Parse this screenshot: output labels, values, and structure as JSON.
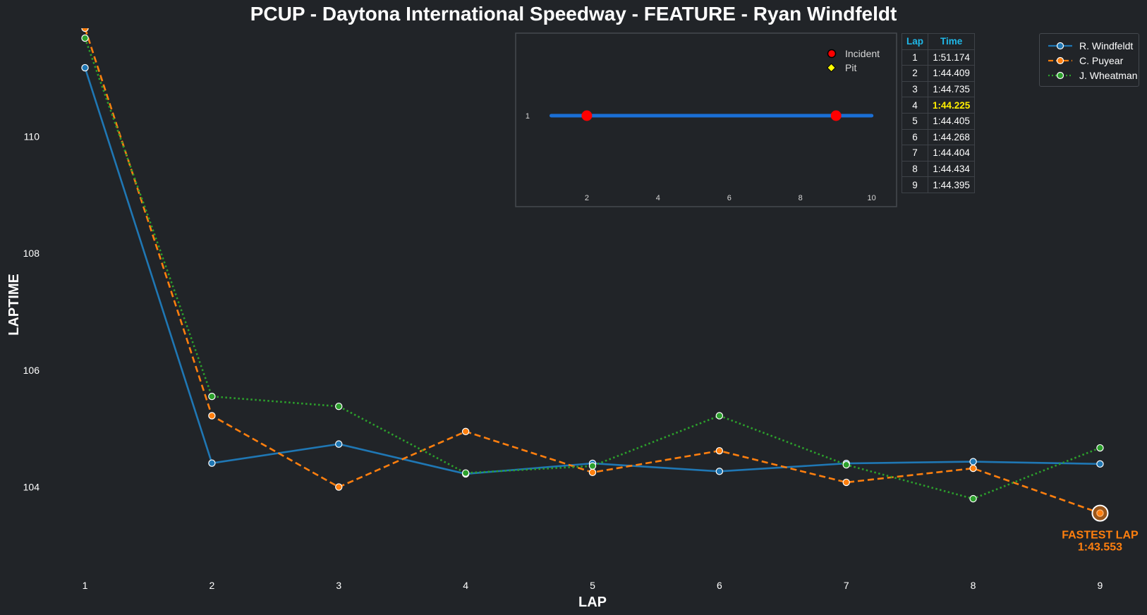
{
  "title": "PCUP - Daytona International Speedway - FEATURE - Ryan Windfeldt",
  "colors": {
    "background": "#212428",
    "windfeldt": "#1f77b4",
    "puyear": "#ff7f0e",
    "wheatman": "#2ca02c",
    "incident": "#ff0000",
    "pit": "#ffff00",
    "table_header": "#1fb8e8",
    "best_lap": "#ffee00"
  },
  "chart_data": [
    {
      "type": "line",
      "xlabel": "LAP",
      "ylabel": "LAPTIME",
      "x": [
        1,
        2,
        3,
        4,
        5,
        6,
        7,
        8,
        9
      ],
      "x_ticks": [
        "1",
        "2",
        "3",
        "4",
        "5",
        "6",
        "7",
        "8",
        "9"
      ],
      "y_ticks": [
        "104",
        "106",
        "108",
        "110"
      ],
      "xlim": [
        0.33,
        9.37
      ],
      "ylim": [
        102.45,
        111.85
      ],
      "grid": false,
      "legend_position": "top-right",
      "series": [
        {
          "name": "R. Windfeldt",
          "style": "solid",
          "values": [
            111.174,
            104.409,
            104.735,
            104.225,
            104.405,
            104.268,
            104.404,
            104.434,
            104.395
          ]
        },
        {
          "name": "C. Puyear",
          "style": "dashed",
          "values": [
            111.85,
            105.22,
            104.0,
            104.95,
            104.25,
            104.62,
            104.08,
            104.32,
            103.553
          ]
        },
        {
          "name": "J. Wheatman",
          "style": "dotted",
          "values": [
            111.68,
            105.55,
            105.38,
            104.24,
            104.36,
            105.22,
            104.38,
            103.8,
            104.67
          ]
        }
      ],
      "annotation": {
        "label": "FASTEST LAP",
        "time": "1:43.553",
        "x": 9,
        "y": 103.553
      }
    },
    {
      "type": "scatter",
      "title": "",
      "x_ticks": [
        "2",
        "4",
        "6",
        "8",
        "10"
      ],
      "y_ticks": [
        "1"
      ],
      "xlim": [
        0.0,
        10.7
      ],
      "stint": {
        "y": 1,
        "x_start": 1,
        "x_end": 10
      },
      "incidents": [
        2,
        9
      ],
      "pits": [],
      "legend": {
        "incident": "Incident",
        "pit": "Pit"
      },
      "legend_position": "top-right"
    },
    {
      "type": "table",
      "columns": [
        "Lap",
        "Time"
      ],
      "rows": [
        [
          "1",
          "1:51.174"
        ],
        [
          "2",
          "1:44.409"
        ],
        [
          "3",
          "1:44.735"
        ],
        [
          "4",
          "1:44.225"
        ],
        [
          "5",
          "1:44.405"
        ],
        [
          "6",
          "1:44.268"
        ],
        [
          "7",
          "1:44.404"
        ],
        [
          "8",
          "1:44.434"
        ],
        [
          "9",
          "1:44.395"
        ]
      ],
      "best_lap_row": 4
    }
  ]
}
